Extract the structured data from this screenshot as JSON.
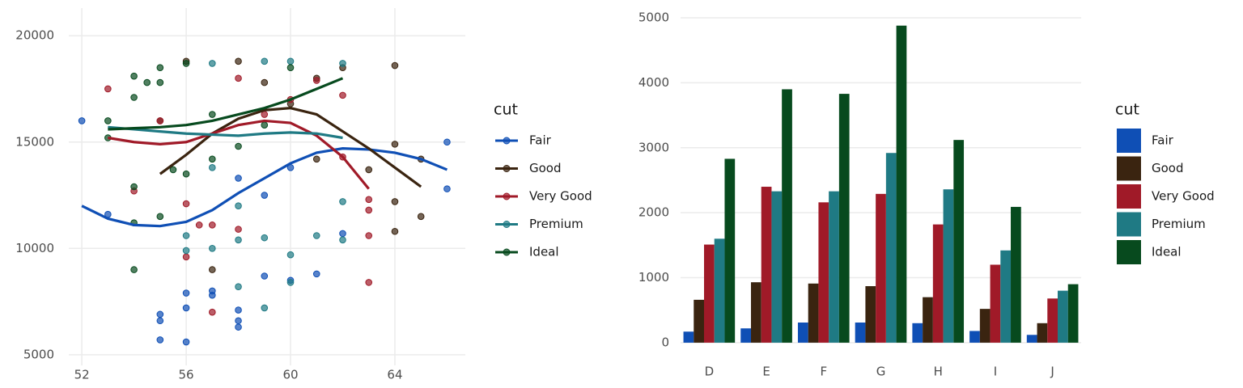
{
  "chart_data": [
    {
      "type": "scatter",
      "legend_title": "cut",
      "grid": true,
      "legend_position": "right",
      "xlim": [
        51.5,
        66.7
      ],
      "ylim": [
        4500,
        21300
      ],
      "xticks": [
        52,
        56,
        60,
        64
      ],
      "yticks": [
        5000,
        10000,
        15000,
        20000
      ],
      "series": [
        {
          "name": "Fair",
          "color": "#0f4fb5",
          "x": [
            52,
            53,
            55,
            55,
            55,
            56,
            56,
            56,
            57,
            57,
            58,
            58,
            58,
            59,
            60,
            61,
            62,
            66,
            66,
            58,
            59,
            60
          ],
          "values": [
            16000,
            11600,
            6600,
            5700,
            6900,
            5600,
            7200,
            7900,
            7800,
            8000,
            6300,
            6600,
            7100,
            8700,
            8500,
            8800,
            10700,
            12800,
            15000,
            13300,
            12500,
            13800
          ],
          "smooth_x": [
            52,
            53,
            54,
            55,
            56,
            57,
            58,
            59,
            60,
            61,
            62,
            63,
            64,
            65,
            66
          ],
          "smooth_values": [
            12000,
            11400,
            11100,
            11050,
            11250,
            11800,
            12600,
            13300,
            14000,
            14500,
            14700,
            14650,
            14500,
            14200,
            13700
          ]
        },
        {
          "name": "Good",
          "color": "#3a2410",
          "x": [
            57,
            58,
            59,
            60,
            61,
            61,
            62,
            63,
            64,
            64,
            64,
            64,
            65,
            65,
            56,
            55
          ],
          "values": [
            9000,
            18800,
            17800,
            16800,
            18000,
            14200,
            18500,
            13700,
            18600,
            14900,
            12200,
            10800,
            11500,
            14200,
            18800,
            16000
          ],
          "smooth_x": [
            55,
            56,
            57,
            58,
            59,
            60,
            61,
            62,
            63,
            64,
            65
          ],
          "smooth_values": [
            13500,
            14400,
            15400,
            16100,
            16500,
            16600,
            16300,
            15500,
            14700,
            13800,
            12900
          ]
        },
        {
          "name": "Very Good",
          "color": "#a01a28",
          "x": [
            53,
            54,
            55,
            56,
            56,
            57,
            57,
            58,
            59,
            60,
            61,
            62,
            62,
            63,
            63,
            63,
            63,
            56.5,
            58
          ],
          "values": [
            17500,
            12700,
            16000,
            9600,
            12100,
            7000,
            11100,
            18000,
            16300,
            17000,
            17900,
            17200,
            14300,
            12300,
            11800,
            10600,
            8400,
            11100,
            10900
          ],
          "smooth_x": [
            53,
            54,
            55,
            56,
            57,
            58,
            59,
            60,
            61,
            62,
            63
          ],
          "smooth_values": [
            15200,
            15000,
            14900,
            15000,
            15400,
            15800,
            16000,
            15900,
            15300,
            14300,
            12800
          ]
        },
        {
          "name": "Premium",
          "color": "#1f7a84",
          "x": [
            56,
            56,
            57,
            57,
            58,
            58,
            59,
            59,
            60,
            60,
            61,
            62,
            62,
            62,
            59,
            60,
            58,
            57
          ],
          "values": [
            9900,
            10600,
            18700,
            10000,
            8200,
            10400,
            7200,
            10500,
            9700,
            8400,
            10600,
            10400,
            12200,
            18700,
            18800,
            18800,
            12000,
            13800
          ],
          "smooth_x": [
            53,
            54,
            55,
            56,
            57,
            58,
            59,
            60,
            61,
            62
          ],
          "smooth_values": [
            15700,
            15600,
            15500,
            15400,
            15350,
            15300,
            15400,
            15450,
            15400,
            15200
          ]
        },
        {
          "name": "Ideal",
          "color": "#074a1e",
          "x": [
            53,
            53,
            54,
            54,
            54,
            54,
            54,
            55,
            55,
            55,
            56,
            56,
            57,
            57,
            58,
            59,
            60,
            55.5,
            54.5
          ],
          "values": [
            15200,
            16000,
            9000,
            11200,
            12900,
            17100,
            18100,
            18500,
            11500,
            17800,
            18700,
            13500,
            14200,
            16300,
            14800,
            15800,
            18500,
            13700,
            17800
          ],
          "smooth_x": [
            53,
            54,
            55,
            56,
            57,
            58,
            59,
            60,
            61,
            62
          ],
          "smooth_values": [
            15600,
            15650,
            15700,
            15800,
            16000,
            16300,
            16600,
            17000,
            17500,
            18000
          ]
        }
      ]
    },
    {
      "type": "bar",
      "legend_title": "cut",
      "grid": true,
      "legend_position": "right",
      "categories": [
        "D",
        "E",
        "F",
        "G",
        "H",
        "I",
        "J"
      ],
      "ylim": [
        -200,
        5150
      ],
      "yticks": [
        0,
        1000,
        2000,
        3000,
        4000,
        5000
      ],
      "series": [
        {
          "name": "Fair",
          "color": "#0f4fb5",
          "values": [
            170,
            220,
            310,
            310,
            300,
            180,
            120
          ]
        },
        {
          "name": "Good",
          "color": "#3a2410",
          "values": [
            660,
            930,
            910,
            870,
            700,
            520,
            300
          ]
        },
        {
          "name": "Very Good",
          "color": "#a01a28",
          "values": [
            1510,
            2400,
            2160,
            2290,
            1820,
            1200,
            680
          ]
        },
        {
          "name": "Premium",
          "color": "#1f7a84",
          "values": [
            1600,
            2330,
            2330,
            2920,
            2360,
            1420,
            800
          ]
        },
        {
          "name": "Ideal",
          "color": "#074a1e",
          "values": [
            2830,
            3900,
            3830,
            4880,
            3120,
            2090,
            900
          ]
        }
      ]
    }
  ]
}
